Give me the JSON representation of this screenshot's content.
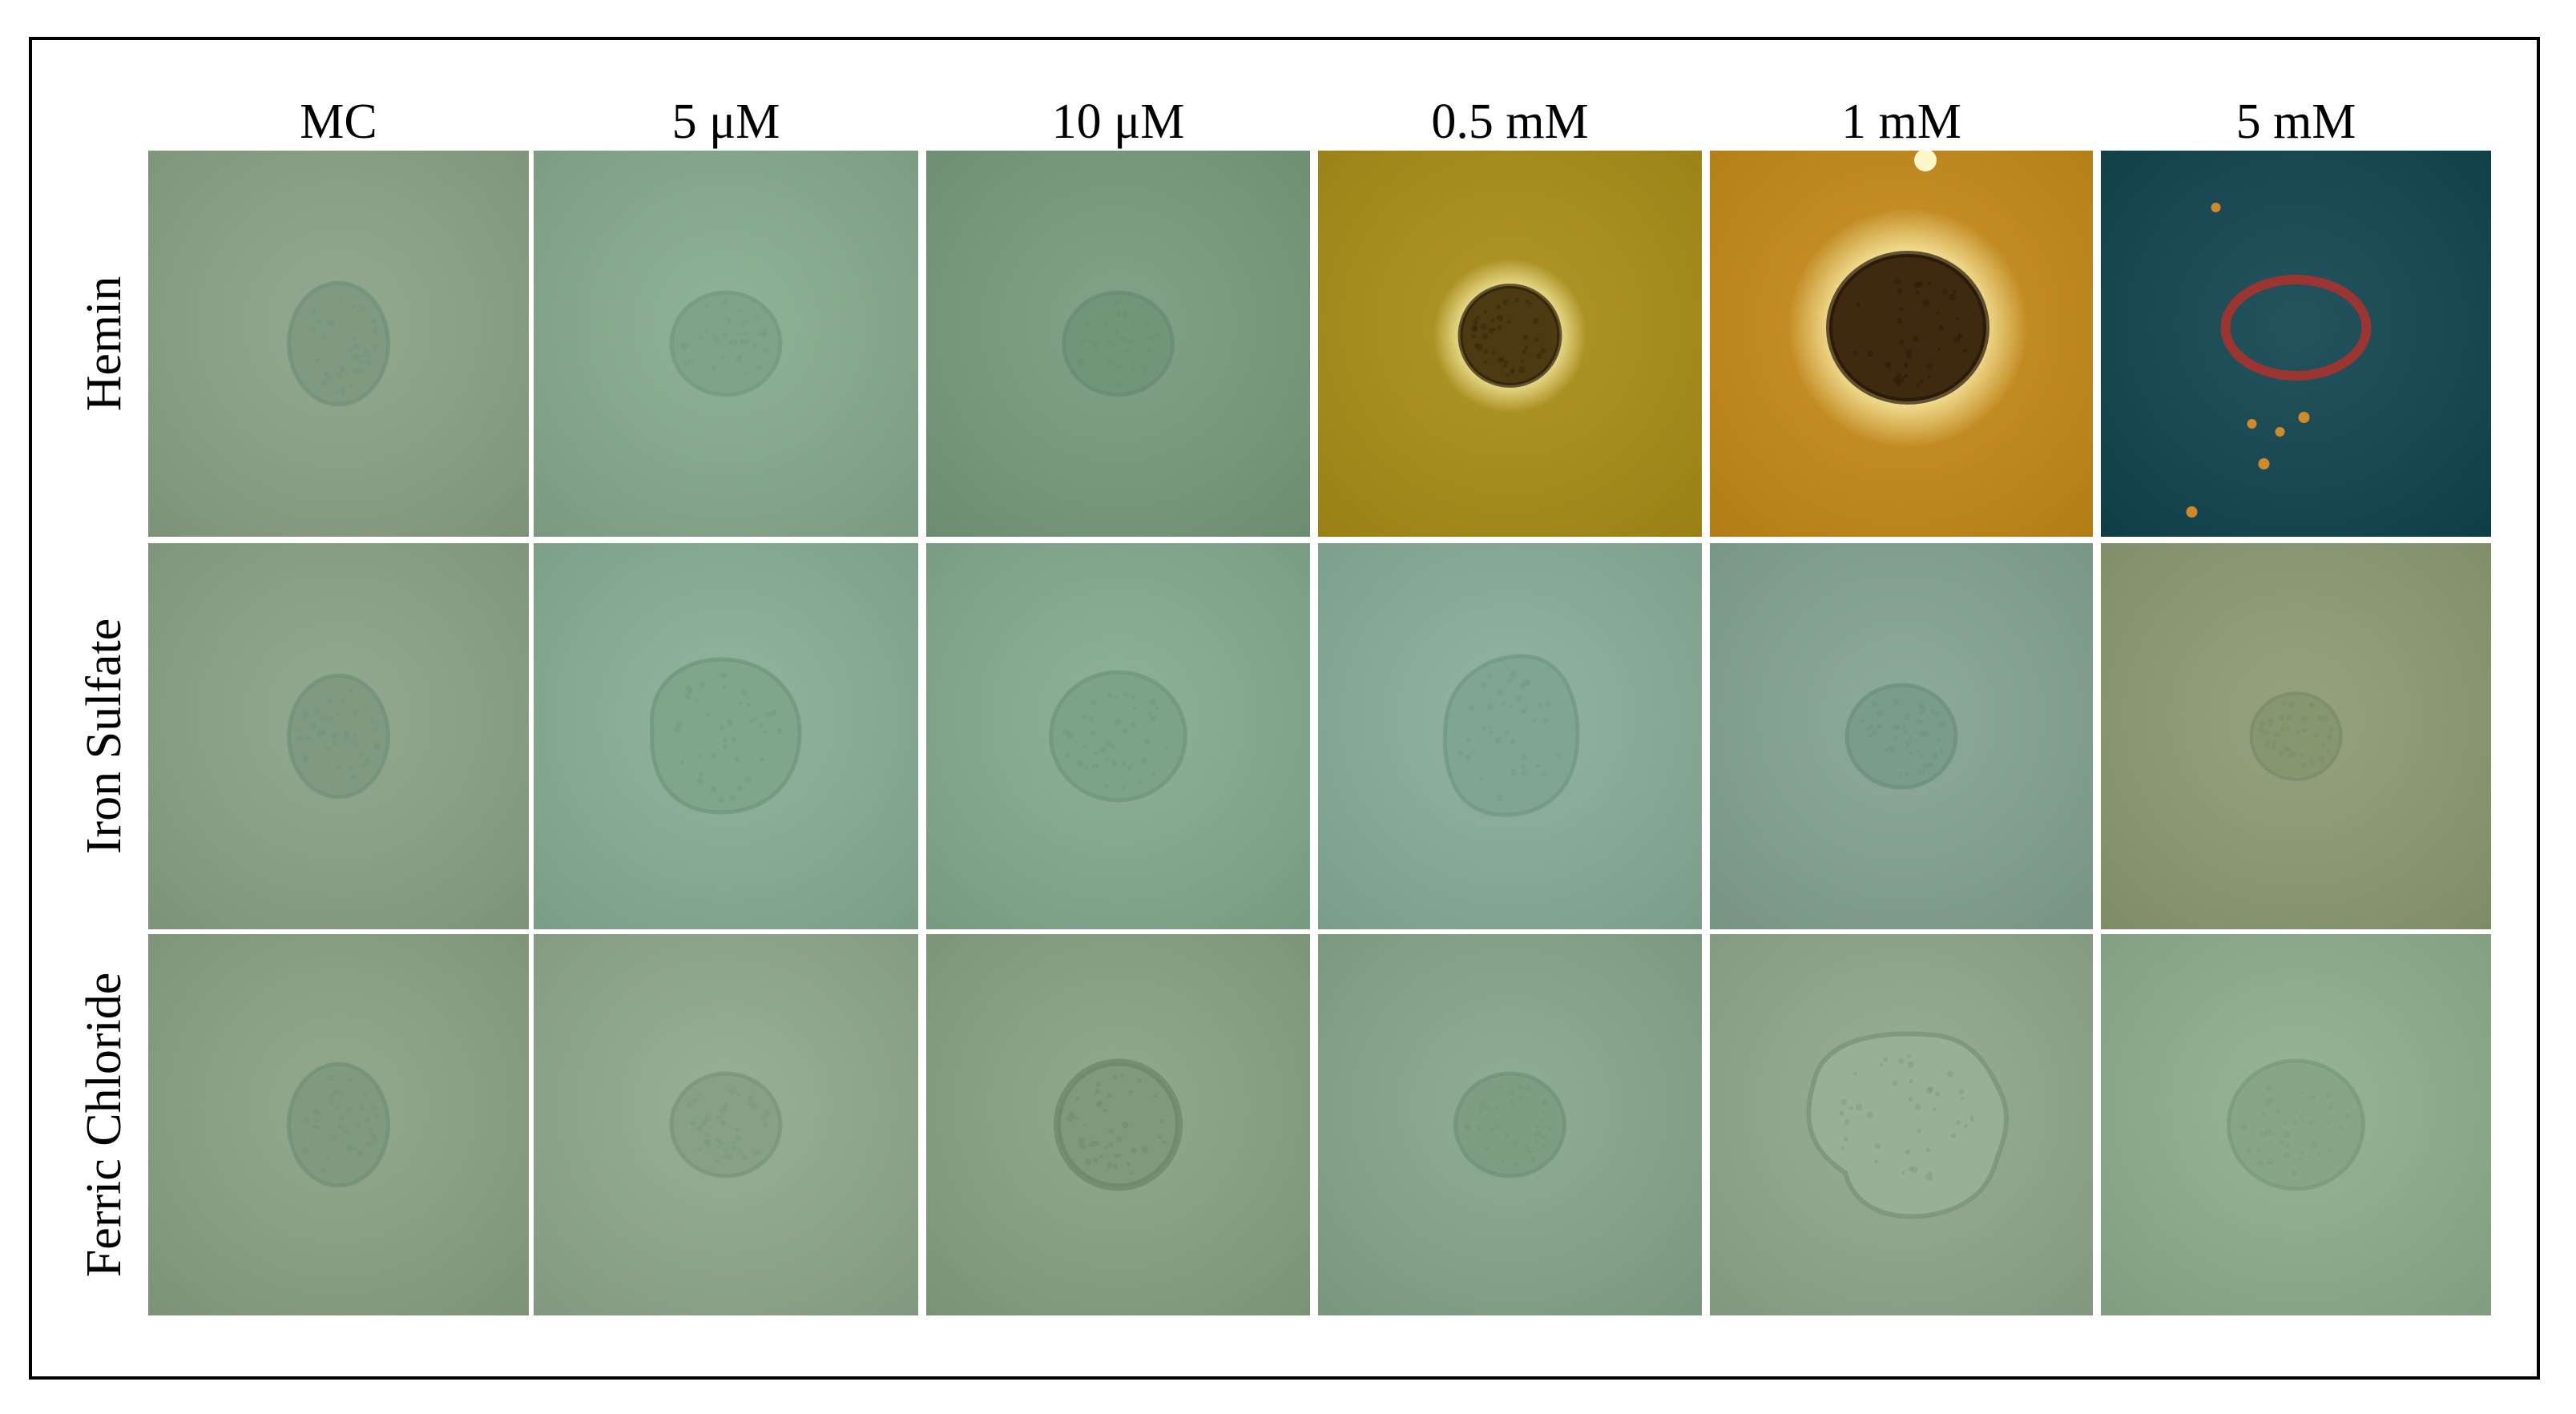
{
  "columns": [
    {
      "label": "MC"
    },
    {
      "label": "5 μM"
    },
    {
      "label": "10 μM"
    },
    {
      "label": "0.5 mM"
    },
    {
      "label": "1 mM"
    },
    {
      "label": "5 mM"
    }
  ],
  "rows": [
    {
      "label": "Hemin"
    },
    {
      "label": "Iron Sulfate"
    },
    {
      "label": "Ferric Chloride"
    }
  ],
  "panels": [
    [
      {
        "bg": "#8aa286",
        "colony": "#7f9a80",
        "rim": "#71907a",
        "shape": "oval-faint"
      },
      {
        "bg": "#86ab8e",
        "colony": "#7ea388",
        "rim": "#6f9880",
        "shape": "round-faint"
      },
      {
        "bg": "#789b7e",
        "colony": "#729579",
        "rim": "#668c74",
        "shape": "round-faint"
      },
      {
        "bg": "#aa8e16",
        "colony": "#4d3a12",
        "rim": "#2a1e08",
        "shape": "dark-halo"
      },
      {
        "bg": "#c68a18",
        "colony": "#3f2a10",
        "rim": "#221508",
        "shape": "dark-halo-large"
      },
      {
        "bg": "#10444f",
        "colony": "#10444f",
        "rim": "#a8322e",
        "shape": "red-ring"
      }
    ],
    [
      {
        "bg": "#8aa286",
        "colony": "#7f9a80",
        "rim": "#71907a",
        "shape": "oval-faint"
      },
      {
        "bg": "#88ae94",
        "colony": "#7fa58b",
        "rim": "#6c967e",
        "shape": "large-irregular"
      },
      {
        "bg": "#84aa8f",
        "colony": "#7ca287",
        "rim": "#6b957c",
        "shape": "large-round"
      },
      {
        "bg": "#88ad98",
        "colony": "#80a590",
        "rim": "#6e9884",
        "shape": "large-oval"
      },
      {
        "bg": "#83a392",
        "colony": "#7b9c8b",
        "rim": "#6b8f7f",
        "shape": "round-faint"
      },
      {
        "bg": "#8c9a74",
        "colony": "#86966f",
        "rim": "#778a69",
        "shape": "small-round"
      }
    ],
    [
      {
        "bg": "#8aa284",
        "colony": "#809a7f",
        "rim": "#718f77",
        "shape": "oval-faint"
      },
      {
        "bg": "#8fa98c",
        "colony": "#86a185",
        "rim": "#76947a",
        "shape": "round-faint"
      },
      {
        "bg": "#87a283",
        "colony": "#7f9a7a",
        "rim": "#6a8566",
        "shape": "round-dark-rim"
      },
      {
        "bg": "#86a68b",
        "colony": "#7e9e83",
        "rim": "#6f9279",
        "shape": "round-faint"
      },
      {
        "bg": "#8fa88c",
        "colony": "#98b096",
        "rim": "#78907a",
        "shape": "blob"
      },
      {
        "bg": "#8fae8e",
        "colony": "#87a686",
        "rim": "#77987a",
        "shape": "large-round"
      }
    ]
  ],
  "colors": {
    "frame": "#000000",
    "grid_gap": "#ffffff",
    "text": "#000000"
  }
}
